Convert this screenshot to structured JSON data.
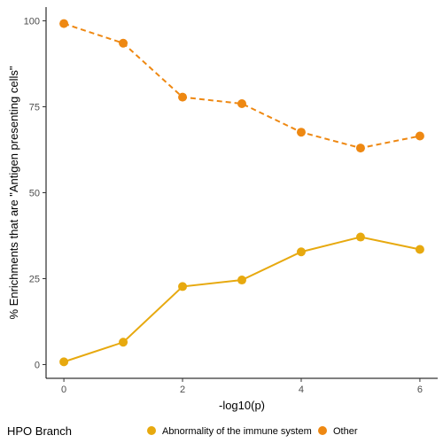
{
  "chart_data": {
    "type": "line",
    "xlabel": "-log10(p)",
    "ylabel": "% Enrichments that are \"Antigen presenting cells\"",
    "x": [
      0,
      1,
      2,
      3,
      4,
      5,
      6
    ],
    "xlim": [
      -0.3,
      6.3
    ],
    "ylim": [
      -4,
      104
    ],
    "x_ticks": [
      "0",
      "2",
      "4",
      "6"
    ],
    "y_ticks": [
      "0",
      "25",
      "50",
      "75",
      "100"
    ],
    "grid": false,
    "legend_title": "HPO Branch",
    "legend_position": "bottom",
    "series": [
      {
        "name": "Abnormality of the immune system",
        "color": "#E7A90F",
        "line_style": "solid",
        "values": [
          0.8,
          6.5,
          22.7,
          24.6,
          32.8,
          37.1,
          33.5
        ]
      },
      {
        "name": "Other",
        "color": "#EE8812",
        "line_style": "dashed",
        "values": [
          99.2,
          93.5,
          77.8,
          75.9,
          67.6,
          63.0,
          66.5
        ]
      }
    ]
  }
}
